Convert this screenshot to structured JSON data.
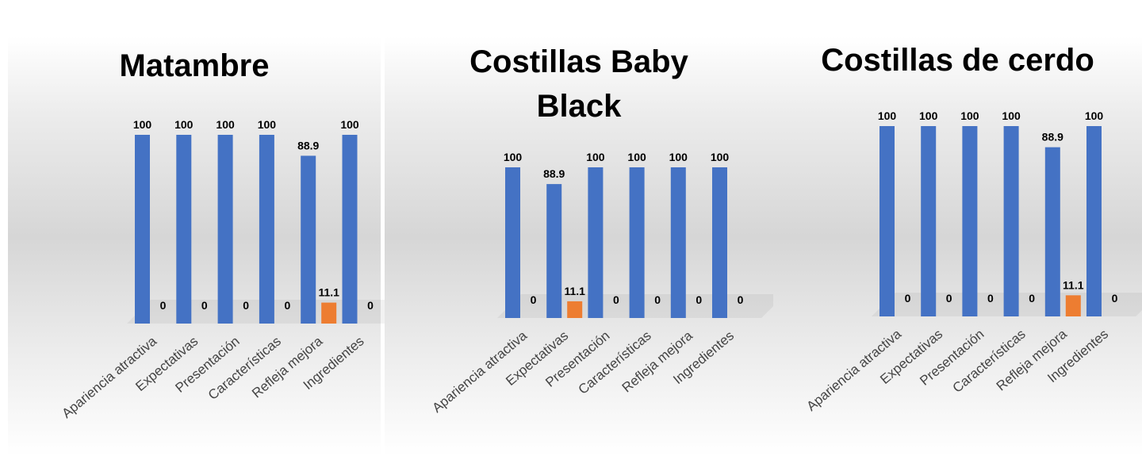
{
  "chart_data": [
    {
      "type": "bar",
      "title": "Matambre",
      "categories": [
        "Apariencia atractiva",
        "Expectativas",
        "Presentación",
        "Características",
        "Refleja mejora",
        "Ingredientes"
      ],
      "series": [
        {
          "values": [
            100,
            100,
            100,
            100,
            88.9,
            100
          ],
          "color": "#4472C4"
        },
        {
          "values": [
            0,
            0,
            0,
            0,
            11.1,
            0
          ],
          "color": "#ED7D31"
        }
      ],
      "ylim": [
        0,
        100
      ]
    },
    {
      "type": "bar",
      "title": "Costillas Baby Black",
      "categories": [
        "Apariencia atractiva",
        "Expectativas",
        "Presentación",
        "Características",
        "Refleja mejora",
        "Ingredientes"
      ],
      "series": [
        {
          "values": [
            100,
            88.9,
            100,
            100,
            100,
            100
          ],
          "color": "#4472C4"
        },
        {
          "values": [
            0,
            11.1,
            0,
            0,
            0,
            0
          ],
          "color": "#ED7D31"
        }
      ],
      "ylim": [
        0,
        100
      ]
    },
    {
      "type": "bar",
      "title": "Costillas de cerdo",
      "categories": [
        "Apariencia atractiva",
        "Expectativas",
        "Presentación",
        "Características",
        "Refleja mejora",
        "Ingredientes"
      ],
      "series": [
        {
          "values": [
            100,
            100,
            100,
            100,
            88.9,
            100
          ],
          "color": "#4472C4"
        },
        {
          "values": [
            0,
            0,
            0,
            0,
            11.1,
            0
          ],
          "color": "#ED7D31"
        }
      ],
      "ylim": [
        0,
        100
      ]
    }
  ]
}
